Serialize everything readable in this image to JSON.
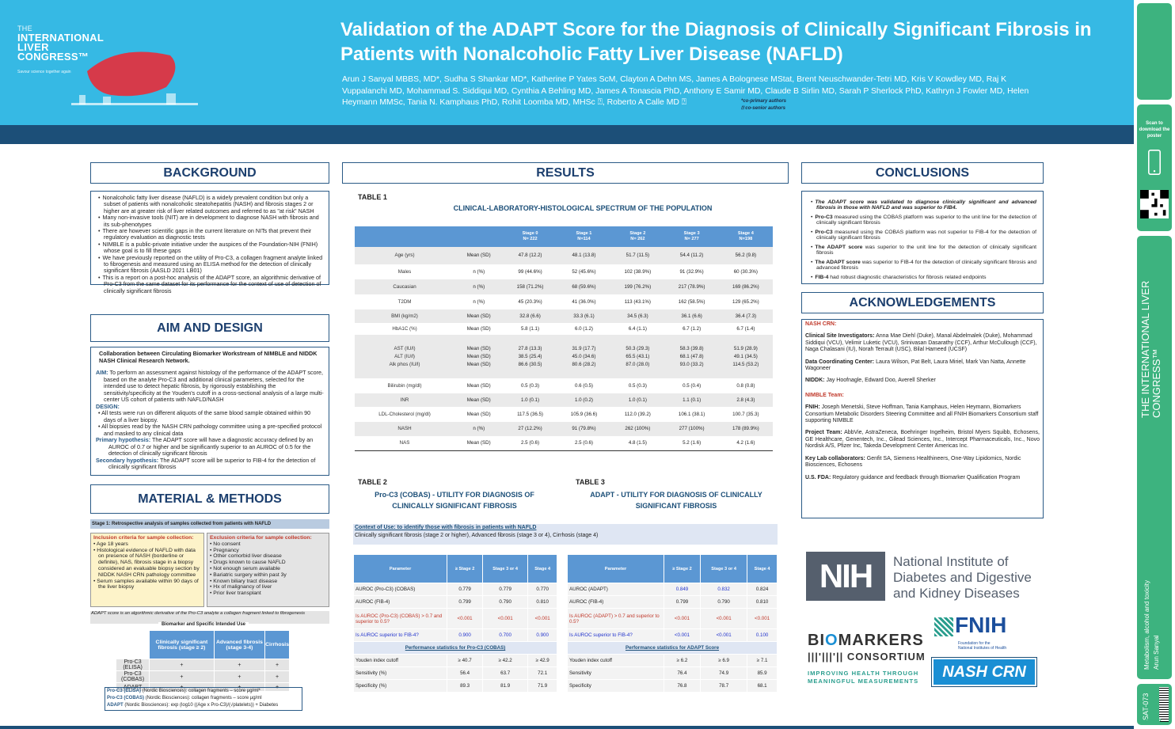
{
  "header": {
    "logo": {
      "the": "THE",
      "line1": "INTERNATIONAL",
      "line2": "LIVER",
      "line3": "CONGRESS™",
      "tagline": "Savour science together again"
    },
    "title": "Validation of the ADAPT Score for the Diagnosis of Clinically Significant Fibrosis in Patients with Nonalcoholic Fatty Liver Disease (NAFLD)",
    "authors": "Arun J Sanyal MBBS, MD*, Sudha S Shankar MD*, Katherine P Yates ScM, Clayton A Dehn MS, James A  Bolognese MStat, Brent Neuschwander-Tetri MD, Kris V Kowdley MD, Raj K Vuppalanchi MD, Mohammad S. Siddiqui MD, Cynthia A Behling MD, James A Tonascia PhD, Anthony E Samir MD, Claude B Sirlin MD, Sarah P Sherlock PhD, Kathryn J Fowler MD, Helen Heymann MMSc, Tania N. Kamphaus PhD, Rohit Loomba MD, MHSc ⍰, Roberto A Calle MD ⍰",
    "note1": "*co-primary authors",
    "note2": "⍰ co-senior authors"
  },
  "sidebar": {
    "scan_text": "Scan to download the poster",
    "congress": "THE INTERNATIONAL LIVER CONGRESS™",
    "topic": "Metabolism, alcohol and toxicity",
    "presenter": "Arun Sanyal",
    "code": "SAT-073",
    "year": "ILC2022"
  },
  "background": {
    "heading": "BACKGROUND",
    "items": [
      "Nonalcoholic fatty liver disease (NAFLD) is a widely prevalent condition but only a subset of patients with nonalcoholic steatohepatitis (NASH) and fibrosis stages 2 or higher are at greater risk of liver related outcomes and referred to as \"at risk\" NASH",
      "Many non-invasive tools (NIT) are in development to diagnose NASH with fibrosis and its sub-phenotypes",
      "There are however scientific gaps in the current literature on NITs that prevent their regulatory evaluation as diagnostic tests",
      "NIMBLE is a public-private initiative under the auspices of the Foundation-NIH (FNIH) whose goal is to fill these gaps",
      "We have previously reported on the utility of Pro-C3, a collagen fragment analyte linked to fibrogenesis and measured using an ELISA method for the detection of clinically significant fibrosis (AASLD 2021 LB01)",
      "This is a report on a post-hoc analysis of the ADAPT score, an algorithmic derivative of Pro-C3 from the same dataset for its performance for the context of use of detection of clinically significant fibrosis"
    ]
  },
  "aim": {
    "heading": "AIM AND DESIGN",
    "collab": "Collaboration between Circulating Biomarker Workstream of NIMBLE and NIDDK NASH Clinical Research Network.",
    "aim_label": "AIM:",
    "aim_text": "To perform an assessment against histology of the performance of the ADAPT score, based on the analyte Pro-C3 and additional clinical parameters, selected for the intended use to detect hepatic fibrosis, by rigorously establishing the sensitivity/specificity at the Youden's cutoff in a cross-sectional analysis of a large multi-center US cohort of patients with NAFLD/NASH",
    "design_label": "DESIGN:",
    "design_items": [
      "All tests were run on different aliquots of the same blood sample obtained within 90 days of a liver biopsy.",
      "All biopsies read by the NASH CRN pathology committee using a pre-specified protocol and masked to any clinical data"
    ],
    "primary_label": "Primary hypothesis:",
    "primary_text": "The ADAPT score will have a diagnostic accuracy defined by an AUROC of 0.7 or higher and be significantly superior to an AUROC of 0.5 for the detection of clinically significant fibrosis",
    "secondary_label": "Secondary hypothesis:",
    "secondary_text": "The ADAPT score will be superior to FIB-4 for the detection of clinically significant fibrosis"
  },
  "methods": {
    "heading": "MATERIAL & METHODS",
    "stage1": "Stage 1: Retrospective analysis of samples collected from patients with NAFLD",
    "incl_title": "Inclusion criteria for sample collection:",
    "incl_items": [
      "Age 18 years",
      "Histological evidence of NAFLD with data on presence of NASH (borderline or definite), NAS, fibrosis stage in a biopsy  considered an evaluable biopsy section by NIDDK NASH CRN pathology committee",
      "Serum samples available within 90 days of the liver biopsy"
    ],
    "excl_title": "Exclusion criteria for sample collection:",
    "excl_items": [
      "No consent",
      "Pregnancy",
      "Other comorbid liver disease",
      "Drugs known to cause NAFLD",
      "Not enough serum available",
      "Bariatric surgery within past 3y",
      "Known biliary tract disease",
      "Hx of malignancy of liver",
      "Prior liver transplant"
    ],
    "adapt_note": "ADAPT score is an algorithmic derivative of the Pro-C3 analyte a collagen fragment linked to fibrogenesis",
    "biomarker_title": "Biomarker and Specific Intended Use",
    "table_headers": [
      "",
      "Clinically significant fibrosis (stage ≥ 2)",
      "Advanced fibrosis (stage 3-4)",
      "Cirrhosis"
    ],
    "table_rows": [
      [
        "Pro-C3 (ELISA)",
        "+",
        "+",
        "+"
      ],
      [
        "Pro-C3 (COBAS)",
        "+",
        "+",
        "+"
      ],
      [
        "ADAPT",
        "+",
        "+",
        "+"
      ]
    ],
    "legend1_k": "Pro-C3 (ELISA)",
    "legend1_v": "(Nordic Biosciences):  collagen fragments – score µg/ml*",
    "legend2_k": "Pro-C3 (COBAS)",
    "legend2_v": "(Nordic Biosciences):  collagen fragments – score µg/ml",
    "legend3_k": "ADAPT",
    "legend3_v": "(Nordic Biosciences): exp (log10 ((Age x Pro-C3)/(√platelets)) + Diabetes"
  },
  "results": {
    "heading": "RESULTS",
    "t1_label": "TABLE 1",
    "t1_title": "CLINICAL-LABORATORY-HISTOLOGICAL SPECTRUM OF THE POPULATION",
    "t1_headers": [
      "",
      "",
      "Stage 0\nN= 222",
      "Stage 1\nN=114",
      "Stage 2\nN= 262",
      "Stage 3\nN= 277",
      "Stage 4\nN=198"
    ],
    "t1_rows": [
      [
        "Age (yrs)",
        "Mean (SD)",
        "47.8 (12.2)",
        "48.1 (13.8)",
        "51.7 (11.5)",
        "54.4 (11.2)",
        "56.2 (9.8)"
      ],
      [
        "Males",
        "n (%)",
        "99 (44.6%)",
        "52 (45.6%)",
        "102 (38.9%)",
        "91 (32.9%)",
        "60 (30.3%)"
      ],
      [
        "Caucasian",
        "n (%)",
        "158 (71.2%)",
        "68 (59.6%)",
        "199 (76.2%)",
        "217 (78.9%)",
        "169 (86.2%)"
      ],
      [
        "T2DM",
        "n (%)",
        "45 (20.3%)",
        "41 (36.0%)",
        "113 (43.1%)",
        "162 (58.5%)",
        "129 (65.2%)"
      ],
      [
        "BMI (kg/m2)",
        "Mean (SD)",
        "32.8 (6.6)",
        "33.3 (6.1)",
        "34.5 (6.3)",
        "36.1 (6.6)",
        "36.4 (7.3)"
      ],
      [
        "HbA1C (%)",
        "Mean (SD)",
        "5.8 (1.1)",
        "6.0 (1.2)",
        "6.4 (1.1)",
        "6.7 (1.2)",
        "6.7 (1.4)"
      ],
      [
        "AST (IU/l)\nALT (IU/l)\nAlk phos (IU/l)",
        "Mean (SD)\nMean (SD)\nMean (SD)",
        "27.8 (13.3)\n38.5 (25.4)\n86.6 (30.5)",
        "31.9 (17.7)\n45.0 (34.6)\n80.6 (28.2)",
        "50.3 (29.3)\n65.5 (43.1)\n87.0 (28.0)",
        "58.3 (39.8)\n68.1 (47.8)\n93.0 (33.2)",
        "51.9 (28.9)\n49.1 (34.5)\n114.5 (53.2)"
      ],
      [
        "Bilirubin (mg/dl)",
        "Mean (SD)",
        "0.5 (0.3)",
        "0.6 (0.5)",
        "0.5 (0.3)",
        "0.5 (0.4)",
        "0.8 (0.8)"
      ],
      [
        "INR",
        "Mean (SD)",
        "1.0 (0.1)",
        "1.0 (0.2)",
        "1.0 (0.1)",
        "1.1 (0.1)",
        "2.8 (4.3)"
      ],
      [
        "LDL-Cholesterol (mg/dl)",
        "Mean (SD)",
        "117.5 (36.5)",
        "105.9 (36.6)",
        "112.0 (39.2)",
        "106.1 (38.1)",
        "100.7 (35.3)"
      ],
      [
        "NASH",
        "n (%)",
        "27 (12.2%)",
        "91 (79.8%)",
        "262 (100%)",
        "277 (100%)",
        "178 (89.9%)"
      ],
      [
        "NAS",
        "Mean (SD)",
        "2.5 (0.6)",
        "2.5 (0.6)",
        "4.8 (1.5)",
        "5.2 (1.6)",
        "4.2 (1.6)"
      ]
    ],
    "t2_label": "TABLE 2",
    "t2_title": "Pro-C3 (COBAS) - UTILITY FOR DIAGNOSIS OF CLINICALLY SIGNIFICANT FIBROSIS",
    "t3_label": "TABLE 3",
    "t3_title": "ADAPT - UTILITY FOR DIAGNOSIS OF CLINICALLY SIGNIFICANT FIBROSIS",
    "ctx_u": "Context of Use:  to identify those with fibrosis in patients with NAFLD",
    "ctx_text": "Clinically significant fibrosis (stage 2 or higher), Advanced fibrosis (stage 3 or 4), Cirrhosis (stage 4)",
    "t23_headers": [
      "Parameter",
      "≥ Stage 2",
      "Stage 3 or 4",
      "Stage 4"
    ],
    "t2_rows": [
      [
        "AUROC (Pro-C3) (COBAS)",
        "0.779",
        "0.779",
        "0.770"
      ],
      [
        "AUROC (FIB-4)",
        "0.799",
        "0.790",
        "0.810"
      ],
      [
        "Is AUROC (Pro-C3) (COBAS) > 0.7 and superior to 0.5?",
        "<0.001",
        "<0.001",
        "<0.001"
      ],
      [
        "Is AUROC superior to FIB-4?",
        "0.900",
        "0.700",
        "0.900"
      ]
    ],
    "t2_sect": "Performance statistics for Pro-C3 (COBAS)",
    "t2_perf": [
      [
        "Youden index cutoff",
        "≥ 40.7",
        "≥ 42.2",
        "≥ 42.9"
      ],
      [
        "Sensitivity (%)",
        "56.4",
        "63.7",
        "72.1"
      ],
      [
        "Specificity (%)",
        "89.3",
        "81.9",
        "71.9"
      ]
    ],
    "t3_rows": [
      [
        "AUROC (ADAPT)",
        "0.849",
        "0.832",
        "0.824"
      ],
      [
        "AUROC (FIB-4)",
        "0.799",
        "0.790",
        "0.810"
      ],
      [
        "Is AUROC (ADAPT) > 0.7 and superior to 0.5?",
        "<0.001",
        "<0.001",
        "<0.001"
      ],
      [
        "Is AUROC superior to FIB-4?",
        "<0.001",
        "<0.001",
        "0.100"
      ]
    ],
    "t3_sect": "Performance statistics for ADAPT Score",
    "t3_perf": [
      [
        "Youden index cutoff",
        "≥ 6.2",
        "≥ 6.9",
        "≥ 7.1"
      ],
      [
        "Sensitivity",
        "76.4",
        "74.9",
        "85.9"
      ],
      [
        "Specificity",
        "76.8",
        "78.7",
        "68.1"
      ]
    ]
  },
  "conclusions": {
    "heading": "CONCLUSIONS",
    "items": [
      {
        "b": "",
        "t": "The ADAPT score was validated to diagnose clinically significant and advanced fibrosis in those with NAFLD and was superior to FIB4."
      },
      {
        "b": "Pro-C3",
        "t": " measured using the COBAS platform was superior to the unit line for the detection of clinically significant fibrosis"
      },
      {
        "b": "Pro-C3",
        "t": " measured using the COBAS platform was not superior to FIB-4 for the detection of clinically significant fibrosis"
      },
      {
        "b": "The ADAPT score",
        "t": " was superior to the unit line for the detection of clinically significant fibrosis"
      },
      {
        "b": "The ADAPT score",
        "t": " was superior to FIB-4 for the detection of clinically significant fibrosis and advanced fibrosis"
      },
      {
        "b": "FIB-4",
        "t": " had robust diagnostic characteristics for fibrosis related endpoints"
      }
    ]
  },
  "acknowledgements": {
    "heading": "ACKNOWLEDGEMENTS",
    "nash_crn": "NASH CRN:",
    "csi_k": "Clinical Site Investigators:",
    "csi_v": " Anna Mae Diehl (Duke), Manal Abdelmalek (Duke), Mohammad Siddiqui (VCU), Velimir Luketic (VCU), Srinivasan Dasarathy (CCF), Arthur McCullough (CCF), Naga Chalasani (IU), Norah Terrault (USC), Bilal Hameed (UCSF)",
    "dcc_k": "Data Coordinating Center:",
    "dcc_v": " Laura Wilson, Pat Belt, Laura Miriel, Mark Van Natta, Annette Wagoneer",
    "niddk_k": "NIDDK:",
    "niddk_v": " Jay Hoofnagle, Edward Doo, Averell Sherker",
    "nimble": "NIMBLE Team:",
    "fnih_k": "FNIH:",
    "fnih_v": " Joseph Menetski, Steve Hoffman, Tania Kamphaus, Helen Heymann, Biomarkers Consortium Metabolic Disorders Steering Committee and all FNIH Biomarkers Consortium staff supporting NIMBLE",
    "proj_k": "Project Team:",
    "proj_v": " AbbVie, AstraZeneca, Boehringer Ingelheim, Bristol Myers Squibb, Echosens, GE Healthcare, Genentech, Inc., Gilead Sciences, Inc., Intercept Pharmaceuticals, Inc., Novo Nordisk A/S, Pfizer Inc, Takeda Development Center Americas Inc.",
    "lab_k": "Key Lab collaborators:",
    "lab_v": " Genfit SA, Siemens Healthineers, One-Way Lipidomics, Nordic Biosciences, Echosens",
    "fda_k": "U.S. FDA:",
    "fda_v": " Regulatory guidance and feedback through Biomarker Qualification Program"
  },
  "logos": {
    "nih": "NIH",
    "nih_text1": "National Institute of",
    "nih_text2": "Diabetes and Digestive",
    "nih_text3": "and Kidney Diseases",
    "bio_a": "BI",
    "bio_b": "O",
    "bio_c": "MARKERS",
    "consortium": "CONSORTIUM",
    "improving1": "IMPROVING HEALTH THROUGH",
    "improving2": "MEANINGFUL MEASUREMENTS",
    "fnih": "FNIH",
    "fnih_sub1": "Foundation for the",
    "fnih_sub2": "National Institutes of Health",
    "nashcrn": "NASH CRN"
  }
}
